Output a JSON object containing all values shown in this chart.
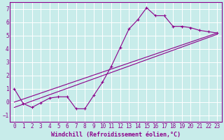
{
  "xlabel": "Windchill (Refroidissement éolien,°C)",
  "xlim": [
    -0.5,
    23.5
  ],
  "ylim": [
    -1.5,
    7.5
  ],
  "xticks": [
    0,
    1,
    2,
    3,
    4,
    5,
    6,
    7,
    8,
    9,
    10,
    11,
    12,
    13,
    14,
    15,
    16,
    17,
    18,
    19,
    20,
    21,
    22,
    23
  ],
  "yticks": [
    -1,
    0,
    1,
    2,
    3,
    4,
    5,
    6,
    7
  ],
  "bg_color": "#c8ecea",
  "grid_color": "#ffffff",
  "line_color": "#8b008b",
  "line1_x": [
    0,
    1,
    2,
    3,
    4,
    5,
    6,
    7,
    8,
    9,
    10,
    11,
    12,
    13,
    14,
    15,
    16,
    17,
    18,
    19,
    20,
    21,
    22,
    23
  ],
  "line1_y": [
    1.0,
    -0.1,
    -0.4,
    -0.05,
    0.3,
    0.4,
    0.4,
    -0.5,
    -0.5,
    0.5,
    1.5,
    2.7,
    4.1,
    5.5,
    6.2,
    7.1,
    6.5,
    6.5,
    5.7,
    5.7,
    5.6,
    5.4,
    5.3,
    5.2
  ],
  "line2_x": [
    0,
    23
  ],
  "line2_y": [
    0.0,
    5.2
  ],
  "line3_x": [
    0,
    23
  ],
  "line3_y": [
    -0.4,
    5.1
  ],
  "tick_fontsize": 5.5,
  "label_fontsize": 6.0,
  "line_width": 0.8,
  "marker_size": 2.5
}
